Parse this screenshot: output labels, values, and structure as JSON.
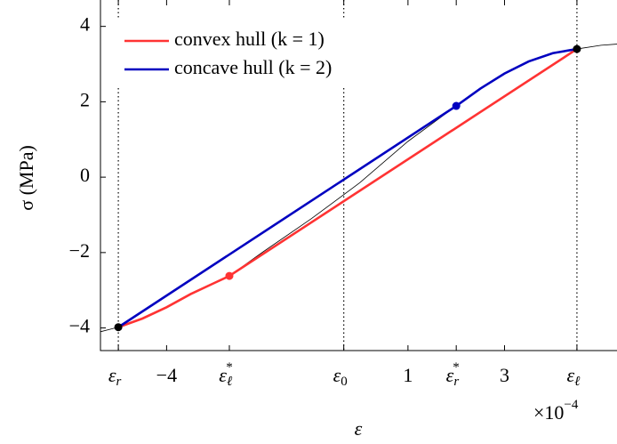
{
  "chart_data": {
    "type": "line",
    "xlabel": "ε",
    "ylabel": "σ (MPa)",
    "scale": {
      "base": "×10",
      "exp": "−4"
    },
    "xlim": [
      -5.37,
      5.33
    ],
    "ylim": [
      -4.6,
      4.7
    ],
    "xticks": [
      {
        "value": -5,
        "symbol": "ε",
        "sub": "r"
      },
      {
        "value": -4,
        "label": "−4"
      },
      {
        "value": -2.7,
        "symbol": "ε",
        "sub": "ℓ",
        "sup": "*"
      },
      {
        "value": -0.33,
        "symbol": "ε",
        "sub": "0"
      },
      1,
      {
        "value": 2,
        "symbol": "ε",
        "sub": "r",
        "sup": "*"
      },
      3,
      {
        "value": 4.5,
        "symbol": "ε",
        "sub": "ℓ"
      }
    ],
    "yticks": [
      {
        "value": -4,
        "label": "−4"
      },
      {
        "value": -2,
        "label": "−2"
      },
      0,
      2,
      4
    ],
    "vlines": [
      -5,
      -0.33,
      4.5
    ],
    "curve": {
      "color": "#000000",
      "x": [
        -5.37,
        -5,
        -4.5,
        -4,
        -3.5,
        -3,
        -2.7,
        -2,
        -1,
        0,
        1,
        2,
        2.5,
        3,
        3.5,
        4,
        4.5,
        5,
        5.33
      ],
      "values": [
        -4.1,
        -3.98,
        -3.75,
        -3.45,
        -3.1,
        -2.8,
        -2.62,
        -1.98,
        -1.1,
        -0.15,
        0.95,
        1.89,
        2.35,
        2.75,
        3.07,
        3.29,
        3.4,
        3.5,
        3.53
      ]
    },
    "series": [
      {
        "name": "convex hull (k = 1)",
        "color": "#ff3333",
        "x": [
          -5,
          -4.5,
          -4,
          -3.5,
          -3,
          -2.7,
          4.5
        ],
        "values": [
          -3.98,
          -3.75,
          -3.45,
          -3.1,
          -2.8,
          -2.62,
          3.4
        ]
      },
      {
        "name": "concave hull (k = 2)",
        "color": "#0000c0",
        "x": [
          -5,
          2,
          2.5,
          3,
          3.5,
          4,
          4.5
        ],
        "values": [
          -3.98,
          1.89,
          2.35,
          2.75,
          3.07,
          3.29,
          3.4
        ]
      }
    ],
    "points": [
      {
        "x": -5,
        "y": -3.98,
        "color": "#000000"
      },
      {
        "x": 4.5,
        "y": 3.4,
        "color": "#000000"
      },
      {
        "x": -2.7,
        "y": -2.62,
        "color": "#ff3333"
      },
      {
        "x": 2,
        "y": 1.89,
        "color": "#0000c0"
      }
    ]
  }
}
